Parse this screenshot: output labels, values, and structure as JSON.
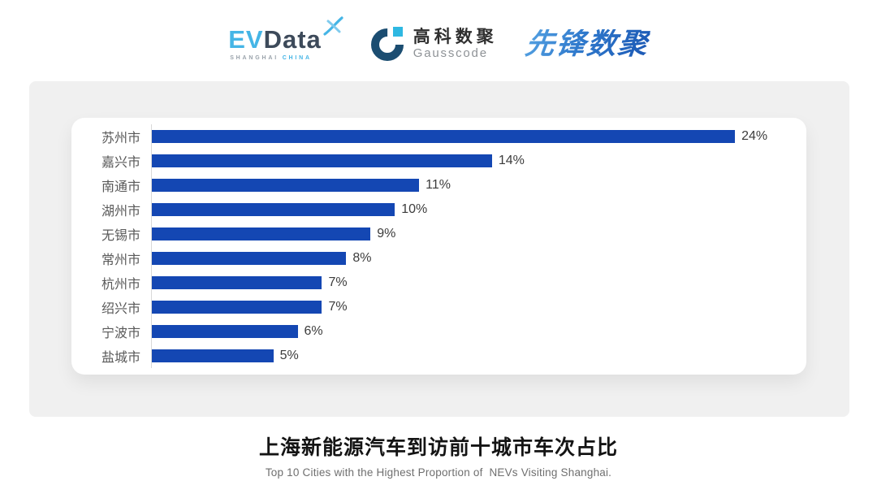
{
  "header": {
    "logos": {
      "evdata": {
        "ev": "EV",
        "data": "Data",
        "sub_left": "SHANGHAI",
        "sub_right": "CHINA",
        "ev_color": "#45b5e6",
        "data_color": "#3d4a5a"
      },
      "gausscode": {
        "cn": "高科数聚",
        "en": "Gausscode",
        "ring_color": "#1b4d71",
        "accent_color": "#2eb8e2"
      },
      "pioneer": {
        "text": "先锋数聚",
        "color_start": "#55a2e2",
        "color_end": "#1c59b5"
      }
    }
  },
  "chart_data": {
    "type": "bar",
    "orientation": "horizontal",
    "title": "上海新能源汽车到访前十城市车次占比",
    "subtitle": "Top 10 Cities with the Highest Proportion of  NEVs Visiting Shanghai.",
    "categories": [
      "苏州市",
      "嘉兴市",
      "南通市",
      "湖州市",
      "无锡市",
      "常州市",
      "杭州市",
      "绍兴市",
      "宁波市",
      "盐城市"
    ],
    "values": [
      24,
      14,
      11,
      10,
      9,
      8,
      7,
      7,
      6,
      5
    ],
    "value_labels": [
      "24%",
      "14%",
      "11%",
      "10%",
      "9%",
      "8%",
      "7%",
      "7%",
      "6%",
      "5%"
    ],
    "xlim": [
      0,
      24
    ],
    "grid": false,
    "legend": false,
    "bar_color": "#1447b3",
    "axis_line_color": "#d9d9d9",
    "category_label_color": "#595959",
    "value_label_color": "#3c3c3c",
    "panel_color": "#f0f0f0",
    "card_color": "#ffffff"
  }
}
